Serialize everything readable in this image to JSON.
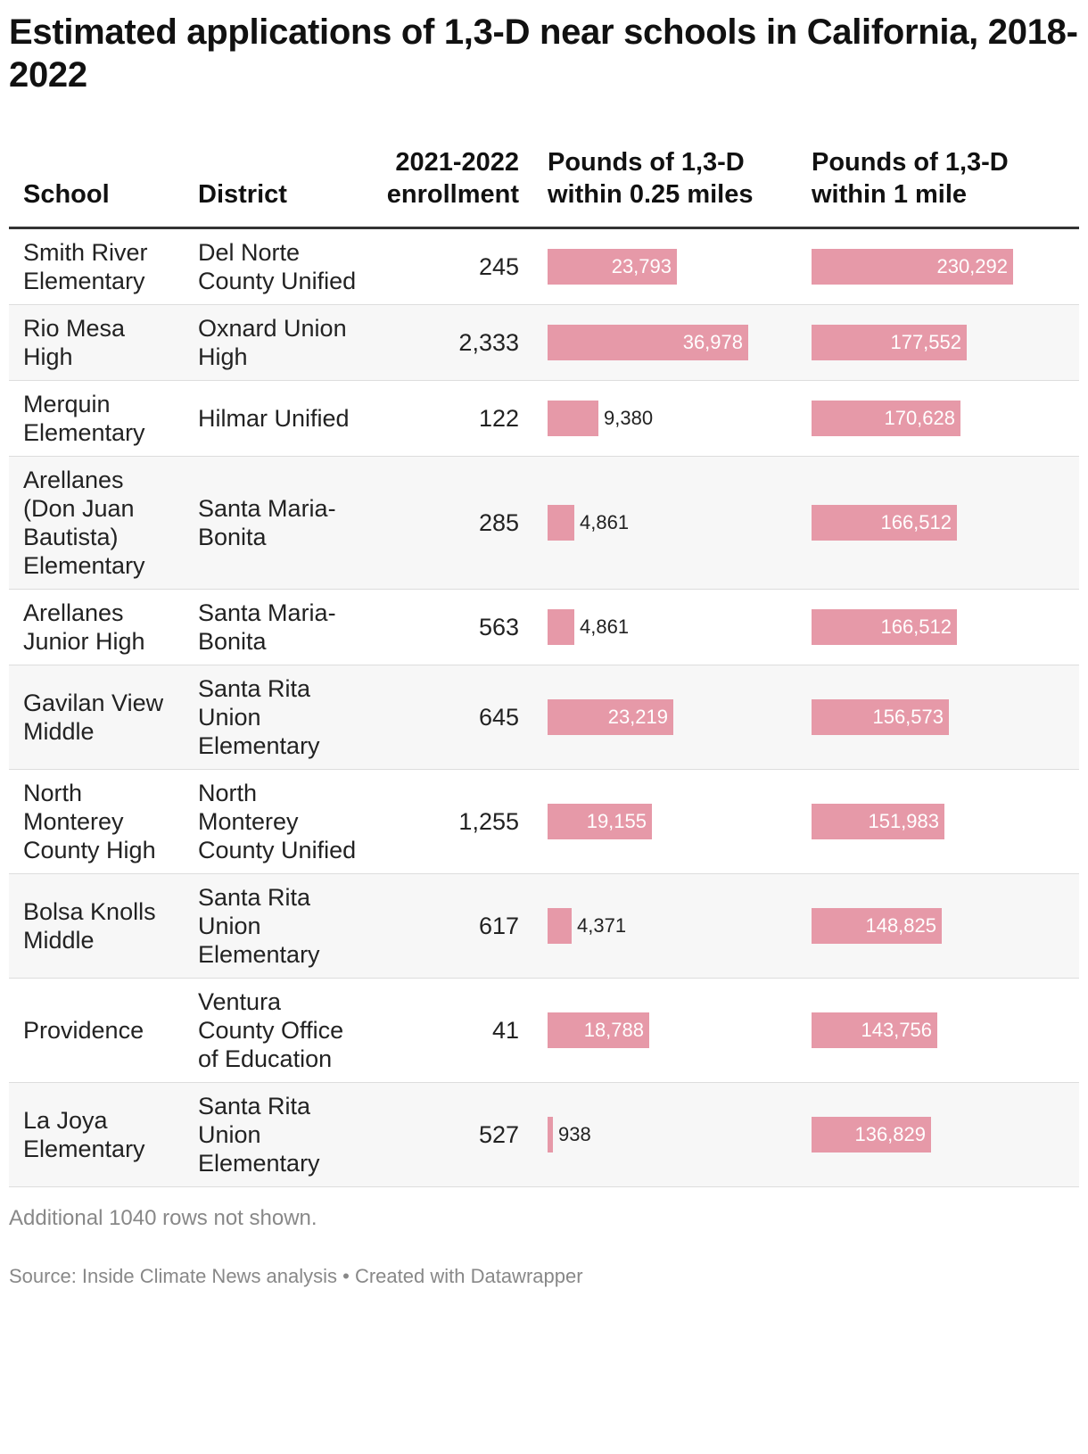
{
  "title": "Estimated applications of 1,3-D near schools in California, 2018-2022",
  "columns": {
    "school": "School",
    "district": "District",
    "enrollment": "2021-2022 enrollment",
    "within_025": "Pounds of 1,3-D within 0.25 miles",
    "within_1": "Pounds of 1,3-D within 1 mile"
  },
  "rows": [
    {
      "school": "Smith River Elementary",
      "district": "Del Norte County Unified",
      "enrollment": "245",
      "within_025": 23793,
      "within_025_label": "23,793",
      "within_1": 230292,
      "within_1_label": "230,292"
    },
    {
      "school": "Rio Mesa High",
      "district": "Oxnard Union High",
      "enrollment": "2,333",
      "within_025": 36978,
      "within_025_label": "36,978",
      "within_1": 177552,
      "within_1_label": "177,552"
    },
    {
      "school": "Merquin Elementary",
      "district": "Hilmar Unified",
      "enrollment": "122",
      "within_025": 9380,
      "within_025_label": "9,380",
      "within_1": 170628,
      "within_1_label": "170,628"
    },
    {
      "school": "Arellanes (Don Juan Bautista) Elementary",
      "district": "Santa Maria-Bonita",
      "enrollment": "285",
      "within_025": 4861,
      "within_025_label": "4,861",
      "within_1": 166512,
      "within_1_label": "166,512"
    },
    {
      "school": "Arellanes Junior High",
      "district": "Santa Maria-Bonita",
      "enrollment": "563",
      "within_025": 4861,
      "within_025_label": "4,861",
      "within_1": 166512,
      "within_1_label": "166,512"
    },
    {
      "school": "Gavilan View Middle",
      "district": "Santa Rita Union Elementary",
      "enrollment": "645",
      "within_025": 23219,
      "within_025_label": "23,219",
      "within_1": 156573,
      "within_1_label": "156,573"
    },
    {
      "school": "North Monterey County High",
      "district": "North Monterey County Unified",
      "enrollment": "1,255",
      "within_025": 19155,
      "within_025_label": "19,155",
      "within_1": 151983,
      "within_1_label": "151,983"
    },
    {
      "school": "Bolsa Knolls Middle",
      "district": "Santa Rita Union Elementary",
      "enrollment": "617",
      "within_025": 4371,
      "within_025_label": "4,371",
      "within_1": 148825,
      "within_1_label": "148,825"
    },
    {
      "school": "Providence",
      "district": "Ventura County Office of Education",
      "enrollment": "41",
      "within_025": 18788,
      "within_025_label": "18,788",
      "within_1": 143756,
      "within_1_label": "143,756"
    },
    {
      "school": "La Joya Elementary",
      "district": "Santa Rita Union Elementary",
      "enrollment": "527",
      "within_025": 938,
      "within_025_label": "938",
      "within_1": 136829,
      "within_1_label": "136,829"
    }
  ],
  "notes": "Additional 1040 rows not shown.",
  "source": "Source: Inside Climate News analysis • Created with Datawrapper",
  "colors": {
    "bar": "#e699a8",
    "alt_row": "#f7f7f7"
  },
  "chart_data": {
    "type": "table",
    "title": "Estimated applications of 1,3-D near schools in California, 2018-2022",
    "categories": [
      "Smith River Elementary",
      "Rio Mesa High",
      "Merquin Elementary",
      "Arellanes (Don Juan Bautista) Elementary",
      "Arellanes Junior High",
      "Gavilan View Middle",
      "North Monterey County High",
      "Bolsa Knolls Middle",
      "Providence",
      "La Joya Elementary"
    ],
    "series": [
      {
        "name": "Pounds of 1,3-D within 0.25 miles",
        "values": [
          23793,
          36978,
          9380,
          4861,
          4861,
          23219,
          19155,
          4371,
          18788,
          938
        ]
      },
      {
        "name": "Pounds of 1,3-D within 1 mile",
        "values": [
          230292,
          177552,
          170628,
          166512,
          166512,
          156573,
          151983,
          148825,
          143756,
          136829
        ]
      }
    ],
    "enrollment": [
      245,
      2333,
      122,
      285,
      563,
      645,
      1255,
      617,
      41,
      527
    ],
    "bar_scale_max": {
      "within_025": 36978,
      "within_1": 230292
    }
  }
}
